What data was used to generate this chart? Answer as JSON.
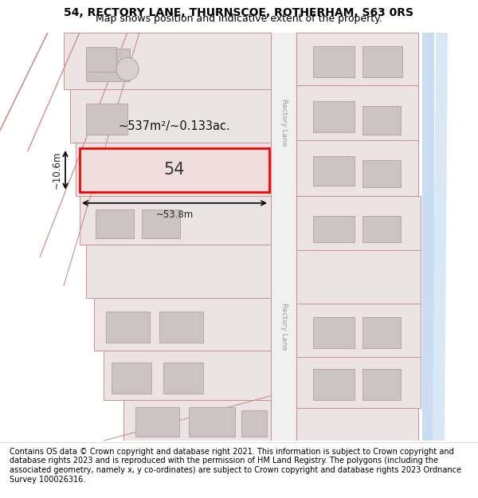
{
  "title_line1": "54, RECTORY LANE, THURNSCOE, ROTHERHAM, S63 0RS",
  "title_line2": "Map shows position and indicative extent of the property.",
  "footer_text": "Contains OS data © Crown copyright and database right 2021. This information is subject to Crown copyright and database rights 2023 and is reproduced with the permission of HM Land Registry. The polygons (including the associated geometry, namely x, y co-ordinates) are subject to Crown copyright and database rights 2023 Ordnance Survey 100026316.",
  "bg_color": "#ffffff",
  "map_bg": "#f8f4f4",
  "parcel_color": "#ece4e4",
  "parcel_edge": "#cc9090",
  "building_color": "#ccc4c4",
  "building_edge": "#b0a0a0",
  "road_color": "#f0f0f0",
  "road_edge": "#e0a0a0",
  "water_color": "#c8ddf0",
  "highlight_fill": "#f0dede",
  "highlight_edge": "#ff0000",
  "label_54": "54",
  "area_label": "~537m²/~0.133ac.",
  "width_label": "~53.8m",
  "height_label": "~10.6m",
  "road_label": "Rectory Lane",
  "title_fontsize": 10,
  "subtitle_fontsize": 9,
  "footer_fontsize": 7,
  "road_label_fontsize": 6.5
}
